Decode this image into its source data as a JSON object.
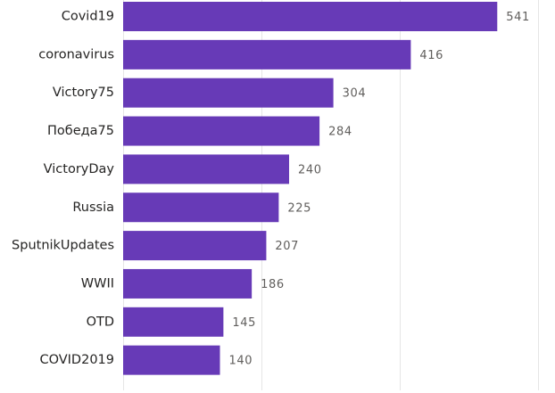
{
  "chart_data": {
    "type": "bar",
    "orientation": "horizontal",
    "title": "",
    "xlabel": "",
    "ylabel": "",
    "categories": [
      "Covid19",
      "coronavirus",
      "Victory75",
      "Победа75",
      "VictoryDay",
      "Russia",
      "SputnikUpdates",
      "WWII",
      "OTD",
      "COVID2019"
    ],
    "values": [
      541,
      416,
      304,
      284,
      240,
      225,
      207,
      186,
      145,
      140
    ],
    "xlim": [
      0,
      600
    ],
    "grid": true,
    "grid_values": [
      0,
      200,
      400,
      600
    ],
    "bar_color": "#673ab7",
    "data_labels": true
  },
  "colors": {
    "bar": "#673ab7",
    "label_text": "#252423",
    "value_text": "#605e5c",
    "grid": "#e6e6e6"
  }
}
